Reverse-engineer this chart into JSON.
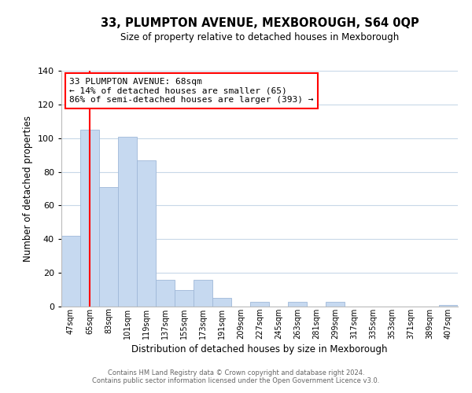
{
  "title": "33, PLUMPTON AVENUE, MEXBOROUGH, S64 0QP",
  "subtitle": "Size of property relative to detached houses in Mexborough",
  "xlabel": "Distribution of detached houses by size in Mexborough",
  "ylabel": "Number of detached properties",
  "bar_labels": [
    "47sqm",
    "65sqm",
    "83sqm",
    "101sqm",
    "119sqm",
    "137sqm",
    "155sqm",
    "173sqm",
    "191sqm",
    "209sqm",
    "227sqm",
    "245sqm",
    "263sqm",
    "281sqm",
    "299sqm",
    "317sqm",
    "335sqm",
    "353sqm",
    "371sqm",
    "389sqm",
    "407sqm"
  ],
  "bar_values": [
    42,
    105,
    71,
    101,
    87,
    16,
    10,
    16,
    5,
    0,
    3,
    0,
    3,
    0,
    3,
    0,
    0,
    0,
    0,
    0,
    1
  ],
  "bar_color": "#c6d9f0",
  "bar_edge_color": "#a0b8d8",
  "ylim": [
    0,
    140
  ],
  "yticks": [
    0,
    20,
    40,
    60,
    80,
    100,
    120,
    140
  ],
  "red_line_x": 1,
  "annotation_title": "33 PLUMPTON AVENUE: 68sqm",
  "annotation_line1": "← 14% of detached houses are smaller (65)",
  "annotation_line2": "86% of semi-detached houses are larger (393) →",
  "footer_line1": "Contains HM Land Registry data © Crown copyright and database right 2024.",
  "footer_line2": "Contains public sector information licensed under the Open Government Licence v3.0.",
  "background_color": "#ffffff",
  "grid_color": "#c8d8e8"
}
